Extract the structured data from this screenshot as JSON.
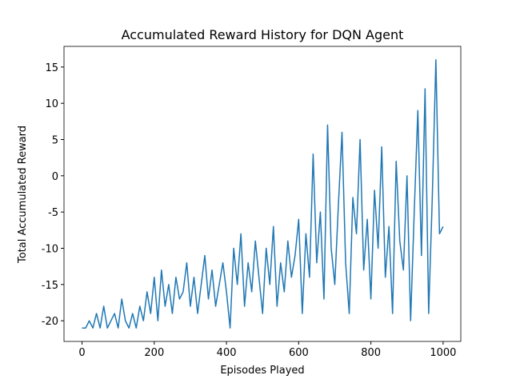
{
  "chart_data": {
    "type": "line",
    "title": "Accumulated Reward History for DQN Agent",
    "x_label": "Episodes Played",
    "y_label": "Total Accumulated Reward",
    "x": [
      0,
      10,
      20,
      30,
      40,
      50,
      60,
      70,
      80,
      90,
      100,
      110,
      120,
      130,
      140,
      150,
      160,
      170,
      180,
      190,
      200,
      210,
      220,
      230,
      240,
      250,
      260,
      270,
      280,
      290,
      300,
      310,
      320,
      330,
      340,
      350,
      360,
      370,
      380,
      390,
      400,
      410,
      420,
      430,
      440,
      450,
      460,
      470,
      480,
      490,
      500,
      510,
      520,
      530,
      540,
      550,
      560,
      570,
      580,
      590,
      600,
      610,
      620,
      630,
      640,
      650,
      660,
      670,
      680,
      690,
      700,
      710,
      720,
      730,
      740,
      750,
      760,
      770,
      780,
      790,
      800,
      810,
      820,
      830,
      840,
      850,
      860,
      870,
      880,
      890,
      900,
      910,
      920,
      930,
      940,
      950,
      960,
      970,
      980,
      990,
      1000
    ],
    "series": [
      {
        "name": "Total Accumulated Reward",
        "color": "#1f77b4",
        "values": [
          -21,
          -21,
          -20,
          -21,
          -19,
          -21,
          -18,
          -21,
          -20,
          -19,
          -21,
          -17,
          -20,
          -21,
          -19,
          -21,
          -18,
          -20,
          -16,
          -19,
          -14,
          -20,
          -13,
          -18,
          -15,
          -19,
          -14,
          -17,
          -16,
          -12,
          -18,
          -14,
          -19,
          -15,
          -11,
          -17,
          -13,
          -18,
          -15,
          -12,
          -16,
          -21,
          -10,
          -15,
          -8,
          -18,
          -12,
          -16,
          -9,
          -14,
          -19,
          -10,
          -15,
          -7,
          -18,
          -12,
          -16,
          -9,
          -14,
          -11,
          -6,
          -19,
          -8,
          -14,
          3,
          -12,
          -5,
          -17,
          7,
          -10,
          -15,
          -4,
          6,
          -12,
          -19,
          -3,
          -8,
          5,
          -13,
          -6,
          -17,
          -2,
          -10,
          4,
          -14,
          -7,
          -19,
          2,
          -9,
          -13,
          0,
          -20,
          -5,
          9,
          -11,
          12,
          -19,
          -3,
          16,
          -8,
          -7
        ]
      }
    ],
    "xlim": [
      -50,
      1049
    ],
    "ylim": [
      -22.85,
      17.85
    ],
    "xticks": [
      0,
      200,
      400,
      600,
      800,
      1000
    ],
    "yticks": [
      -20,
      -15,
      -10,
      -5,
      0,
      5,
      10,
      15
    ]
  }
}
